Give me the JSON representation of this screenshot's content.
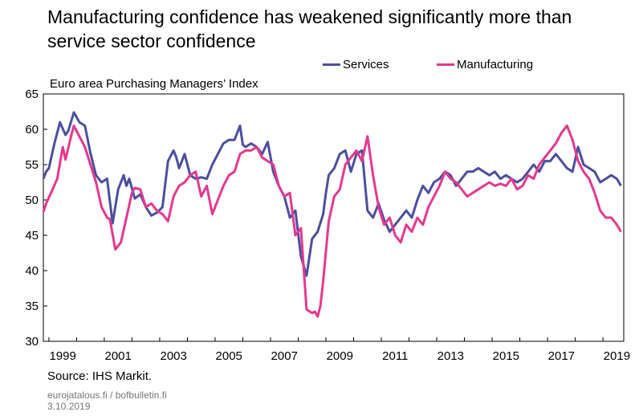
{
  "title": "Manufacturing confidence has weakened significantly more than service sector confidence",
  "subtitle": "Euro area Purchasing Managers’ Index",
  "source": "Source: IHS Markit.",
  "site": "eurojatalous.fi / bofbulletin.fi",
  "date": "3.10.2019",
  "chart_data": {
    "type": "line",
    "title": "Manufacturing confidence has weakened significantly more than service sector confidence",
    "subtitle": "Euro area Purchasing Managers’ Index",
    "xlabel": "",
    "ylabel": "",
    "xlim": [
      1998.8,
      2019.75
    ],
    "ylim": [
      30,
      65
    ],
    "y_ticks": [
      30,
      35,
      40,
      45,
      50,
      55,
      60,
      65
    ],
    "x_tick_labels": [
      "1999",
      "2001",
      "2003",
      "2005",
      "2007",
      "2009",
      "2011",
      "2013",
      "2015",
      "2017",
      "2019"
    ],
    "grid": false,
    "legend_position": "top",
    "series": [
      {
        "name": "Services",
        "color": "#4a4f9e",
        "x": [
          1998.8,
          1998.9,
          1999.0,
          1999.2,
          1999.4,
          1999.6,
          1999.7,
          1999.9,
          2000.1,
          2000.3,
          2000.5,
          2000.7,
          2000.9,
          2001.1,
          2001.3,
          2001.5,
          2001.7,
          2001.8,
          2001.9,
          2002.1,
          2002.3,
          2002.5,
          2002.7,
          2002.9,
          2003.1,
          2003.3,
          2003.5,
          2003.6,
          2003.7,
          2003.9,
          2004.1,
          2004.3,
          2004.5,
          2004.7,
          2004.9,
          2005.1,
          2005.3,
          2005.5,
          2005.7,
          2005.9,
          2006.0,
          2006.1,
          2006.3,
          2006.5,
          2006.7,
          2006.9,
          2007.1,
          2007.3,
          2007.5,
          2007.7,
          2007.9,
          2008.1,
          2008.3,
          2008.5,
          2008.7,
          2008.9,
          2009.0,
          2009.1,
          2009.3,
          2009.5,
          2009.7,
          2009.9,
          2010.1,
          2010.3,
          2010.5,
          2010.7,
          2010.9,
          2011.1,
          2011.3,
          2011.5,
          2011.7,
          2011.9,
          2012.1,
          2012.3,
          2012.5,
          2012.7,
          2012.9,
          2013.1,
          2013.3,
          2013.5,
          2013.7,
          2013.9,
          2014.1,
          2014.3,
          2014.5,
          2014.7,
          2014.9,
          2015.1,
          2015.3,
          2015.5,
          2015.7,
          2015.9,
          2016.1,
          2016.3,
          2016.5,
          2016.7,
          2016.9,
          2017.1,
          2017.3,
          2017.5,
          2017.7,
          2017.9,
          2018.1,
          2018.3,
          2018.5,
          2018.7,
          2018.9,
          2019.1,
          2019.3,
          2019.5,
          2019.65
        ],
        "values": [
          53.0,
          54.0,
          54.5,
          58.0,
          61.0,
          59.2,
          59.8,
          62.4,
          61.0,
          60.5,
          56.6,
          53.5,
          52.5,
          53.0,
          46.7,
          51.5,
          53.5,
          52.0,
          53.0,
          50.2,
          50.8,
          49.0,
          47.8,
          48.2,
          49.0,
          55.5,
          57.0,
          56.0,
          54.5,
          56.5,
          53.5,
          53.0,
          53.2,
          53.0,
          55.0,
          56.5,
          58.0,
          58.5,
          58.5,
          60.5,
          57.8,
          57.5,
          58.0,
          57.5,
          56.5,
          58.2,
          54.0,
          52.0,
          50.5,
          47.5,
          48.5,
          42.0,
          39.3,
          44.5,
          45.5,
          48.0,
          51.0,
          53.5,
          54.5,
          56.5,
          57.0,
          54.0,
          56.5,
          57.0,
          48.5,
          47.5,
          49.5,
          47.2,
          45.5,
          46.5,
          47.5,
          48.5,
          47.5,
          50.0,
          52.0,
          51.0,
          52.5,
          53.0,
          54.0,
          53.5,
          52.0,
          53.0,
          54.0,
          54.0,
          54.5,
          54.0,
          53.5,
          54.0,
          53.0,
          53.5,
          53.0,
          52.5,
          53.0,
          54.0,
          55.0,
          54.0,
          55.5,
          55.5,
          56.5,
          55.5,
          54.5,
          54.0,
          57.5,
          55.0,
          54.5,
          54.0,
          52.5,
          53.0,
          53.5,
          53.0,
          52.0
        ]
      },
      {
        "name": "Manufacturing",
        "color": "#e5388f",
        "x": [
          1998.8,
          1998.9,
          1999.1,
          1999.3,
          1999.5,
          1999.6,
          1999.8,
          1999.9,
          2000.1,
          2000.3,
          2000.5,
          2000.7,
          2000.9,
          2001.1,
          2001.2,
          2001.4,
          2001.6,
          2001.8,
          2002.0,
          2002.1,
          2002.3,
          2002.5,
          2002.7,
          2002.9,
          2003.1,
          2003.3,
          2003.5,
          2003.7,
          2003.9,
          2004.1,
          2004.3,
          2004.5,
          2004.7,
          2004.9,
          2005.1,
          2005.3,
          2005.5,
          2005.7,
          2005.9,
          2006.1,
          2006.3,
          2006.5,
          2006.7,
          2006.9,
          2007.1,
          2007.3,
          2007.5,
          2007.7,
          2007.9,
          2008.1,
          2008.3,
          2008.5,
          2008.6,
          2008.7,
          2008.8,
          2008.9,
          2009.1,
          2009.3,
          2009.5,
          2009.7,
          2009.9,
          2010.1,
          2010.3,
          2010.5,
          2010.7,
          2010.9,
          2011.1,
          2011.3,
          2011.5,
          2011.7,
          2011.9,
          2012.1,
          2012.3,
          2012.5,
          2012.7,
          2012.9,
          2013.1,
          2013.3,
          2013.5,
          2013.7,
          2013.9,
          2014.1,
          2014.3,
          2014.5,
          2014.7,
          2014.9,
          2015.1,
          2015.3,
          2015.5,
          2015.7,
          2015.9,
          2016.1,
          2016.3,
          2016.5,
          2016.7,
          2016.9,
          2017.1,
          2017.3,
          2017.5,
          2017.7,
          2017.9,
          2018.1,
          2018.3,
          2018.5,
          2018.7,
          2018.9,
          2019.1,
          2019.3,
          2019.5,
          2019.65
        ],
        "values": [
          48.3,
          49.5,
          51.2,
          53.0,
          57.5,
          55.7,
          59.0,
          60.5,
          59.0,
          57.5,
          55.0,
          52.5,
          49.0,
          47.5,
          47.3,
          43.0,
          44.0,
          47.5,
          51.0,
          51.7,
          51.5,
          49.0,
          49.5,
          48.5,
          48.0,
          47.0,
          50.5,
          52.0,
          52.5,
          53.5,
          54.0,
          50.5,
          52.0,
          48.0,
          50.0,
          52.0,
          53.5,
          54.0,
          56.5,
          57.0,
          57.0,
          57.5,
          56.0,
          55.5,
          55.0,
          52.0,
          50.5,
          51.0,
          45.0,
          46.0,
          34.5,
          34.0,
          34.2,
          33.5,
          35.0,
          38.5,
          47.0,
          50.5,
          51.5,
          55.0,
          56.0,
          57.0,
          55.5,
          59.0,
          53.5,
          49.0,
          46.5,
          47.5,
          45.0,
          44.0,
          46.5,
          45.5,
          47.5,
          46.5,
          49.0,
          50.5,
          52.0,
          54.0,
          53.0,
          52.5,
          51.5,
          50.5,
          51.0,
          51.5,
          52.0,
          52.5,
          52.0,
          52.3,
          52.0,
          53.0,
          51.5,
          52.0,
          53.5,
          53.0,
          55.0,
          56.0,
          57.0,
          58.0,
          59.5,
          60.5,
          58.5,
          55.5,
          54.0,
          53.0,
          51.0,
          48.5,
          47.5,
          47.5,
          46.5,
          45.5
        ]
      }
    ]
  }
}
